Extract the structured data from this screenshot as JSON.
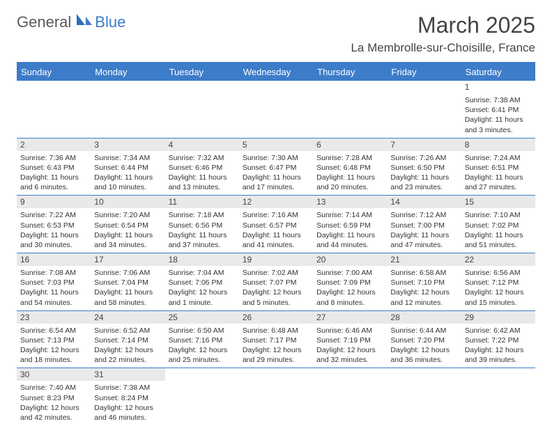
{
  "brand": {
    "part1": "General",
    "part2": "Blue"
  },
  "title": "March 2025",
  "location": "La Membrolle-sur-Choisille, France",
  "columns": [
    "Sunday",
    "Monday",
    "Tuesday",
    "Wednesday",
    "Thursday",
    "Friday",
    "Saturday"
  ],
  "colors": {
    "accent": "#3d7cc9",
    "header_bg": "#3d7cc9",
    "daynum_bg": "#e9e9e9"
  },
  "weeks": [
    [
      null,
      null,
      null,
      null,
      null,
      null,
      {
        "n": "1",
        "sr": "Sunrise: 7:38 AM",
        "ss": "Sunset: 6:41 PM",
        "d1": "Daylight: 11 hours",
        "d2": "and 3 minutes."
      }
    ],
    [
      {
        "n": "2",
        "sr": "Sunrise: 7:36 AM",
        "ss": "Sunset: 6:43 PM",
        "d1": "Daylight: 11 hours",
        "d2": "and 6 minutes."
      },
      {
        "n": "3",
        "sr": "Sunrise: 7:34 AM",
        "ss": "Sunset: 6:44 PM",
        "d1": "Daylight: 11 hours",
        "d2": "and 10 minutes."
      },
      {
        "n": "4",
        "sr": "Sunrise: 7:32 AM",
        "ss": "Sunset: 6:46 PM",
        "d1": "Daylight: 11 hours",
        "d2": "and 13 minutes."
      },
      {
        "n": "5",
        "sr": "Sunrise: 7:30 AM",
        "ss": "Sunset: 6:47 PM",
        "d1": "Daylight: 11 hours",
        "d2": "and 17 minutes."
      },
      {
        "n": "6",
        "sr": "Sunrise: 7:28 AM",
        "ss": "Sunset: 6:48 PM",
        "d1": "Daylight: 11 hours",
        "d2": "and 20 minutes."
      },
      {
        "n": "7",
        "sr": "Sunrise: 7:26 AM",
        "ss": "Sunset: 6:50 PM",
        "d1": "Daylight: 11 hours",
        "d2": "and 23 minutes."
      },
      {
        "n": "8",
        "sr": "Sunrise: 7:24 AM",
        "ss": "Sunset: 6:51 PM",
        "d1": "Daylight: 11 hours",
        "d2": "and 27 minutes."
      }
    ],
    [
      {
        "n": "9",
        "sr": "Sunrise: 7:22 AM",
        "ss": "Sunset: 6:53 PM",
        "d1": "Daylight: 11 hours",
        "d2": "and 30 minutes."
      },
      {
        "n": "10",
        "sr": "Sunrise: 7:20 AM",
        "ss": "Sunset: 6:54 PM",
        "d1": "Daylight: 11 hours",
        "d2": "and 34 minutes."
      },
      {
        "n": "11",
        "sr": "Sunrise: 7:18 AM",
        "ss": "Sunset: 6:56 PM",
        "d1": "Daylight: 11 hours",
        "d2": "and 37 minutes."
      },
      {
        "n": "12",
        "sr": "Sunrise: 7:16 AM",
        "ss": "Sunset: 6:57 PM",
        "d1": "Daylight: 11 hours",
        "d2": "and 41 minutes."
      },
      {
        "n": "13",
        "sr": "Sunrise: 7:14 AM",
        "ss": "Sunset: 6:59 PM",
        "d1": "Daylight: 11 hours",
        "d2": "and 44 minutes."
      },
      {
        "n": "14",
        "sr": "Sunrise: 7:12 AM",
        "ss": "Sunset: 7:00 PM",
        "d1": "Daylight: 11 hours",
        "d2": "and 47 minutes."
      },
      {
        "n": "15",
        "sr": "Sunrise: 7:10 AM",
        "ss": "Sunset: 7:02 PM",
        "d1": "Daylight: 11 hours",
        "d2": "and 51 minutes."
      }
    ],
    [
      {
        "n": "16",
        "sr": "Sunrise: 7:08 AM",
        "ss": "Sunset: 7:03 PM",
        "d1": "Daylight: 11 hours",
        "d2": "and 54 minutes."
      },
      {
        "n": "17",
        "sr": "Sunrise: 7:06 AM",
        "ss": "Sunset: 7:04 PM",
        "d1": "Daylight: 11 hours",
        "d2": "and 58 minutes."
      },
      {
        "n": "18",
        "sr": "Sunrise: 7:04 AM",
        "ss": "Sunset: 7:06 PM",
        "d1": "Daylight: 12 hours",
        "d2": "and 1 minute."
      },
      {
        "n": "19",
        "sr": "Sunrise: 7:02 AM",
        "ss": "Sunset: 7:07 PM",
        "d1": "Daylight: 12 hours",
        "d2": "and 5 minutes."
      },
      {
        "n": "20",
        "sr": "Sunrise: 7:00 AM",
        "ss": "Sunset: 7:09 PM",
        "d1": "Daylight: 12 hours",
        "d2": "and 8 minutes."
      },
      {
        "n": "21",
        "sr": "Sunrise: 6:58 AM",
        "ss": "Sunset: 7:10 PM",
        "d1": "Daylight: 12 hours",
        "d2": "and 12 minutes."
      },
      {
        "n": "22",
        "sr": "Sunrise: 6:56 AM",
        "ss": "Sunset: 7:12 PM",
        "d1": "Daylight: 12 hours",
        "d2": "and 15 minutes."
      }
    ],
    [
      {
        "n": "23",
        "sr": "Sunrise: 6:54 AM",
        "ss": "Sunset: 7:13 PM",
        "d1": "Daylight: 12 hours",
        "d2": "and 18 minutes."
      },
      {
        "n": "24",
        "sr": "Sunrise: 6:52 AM",
        "ss": "Sunset: 7:14 PM",
        "d1": "Daylight: 12 hours",
        "d2": "and 22 minutes."
      },
      {
        "n": "25",
        "sr": "Sunrise: 6:50 AM",
        "ss": "Sunset: 7:16 PM",
        "d1": "Daylight: 12 hours",
        "d2": "and 25 minutes."
      },
      {
        "n": "26",
        "sr": "Sunrise: 6:48 AM",
        "ss": "Sunset: 7:17 PM",
        "d1": "Daylight: 12 hours",
        "d2": "and 29 minutes."
      },
      {
        "n": "27",
        "sr": "Sunrise: 6:46 AM",
        "ss": "Sunset: 7:19 PM",
        "d1": "Daylight: 12 hours",
        "d2": "and 32 minutes."
      },
      {
        "n": "28",
        "sr": "Sunrise: 6:44 AM",
        "ss": "Sunset: 7:20 PM",
        "d1": "Daylight: 12 hours",
        "d2": "and 36 minutes."
      },
      {
        "n": "29",
        "sr": "Sunrise: 6:42 AM",
        "ss": "Sunset: 7:22 PM",
        "d1": "Daylight: 12 hours",
        "d2": "and 39 minutes."
      }
    ],
    [
      {
        "n": "30",
        "sr": "Sunrise: 7:40 AM",
        "ss": "Sunset: 8:23 PM",
        "d1": "Daylight: 12 hours",
        "d2": "and 42 minutes."
      },
      {
        "n": "31",
        "sr": "Sunrise: 7:38 AM",
        "ss": "Sunset: 8:24 PM",
        "d1": "Daylight: 12 hours",
        "d2": "and 46 minutes."
      },
      null,
      null,
      null,
      null,
      null
    ]
  ]
}
